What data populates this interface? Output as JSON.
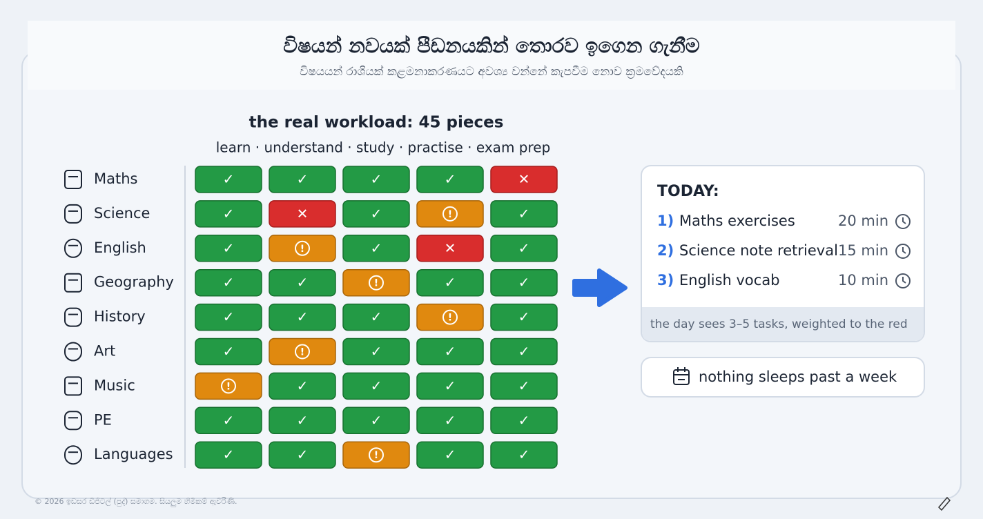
{
  "header": {
    "title": "විෂයන් නවයක් පීඩනයකින් තොරව ඉගෙන ගැනීම",
    "subtitle": "විෂයයන් රාශියක් කළමනාකරණයට අවශ්‍ය වන්නේ කැපවීම නොව ක්‍රමවේදයකි"
  },
  "workload": {
    "title": "the real workload: 45 pieces",
    "stages": "learn · understand · study · practise · exam prep",
    "rows": [
      {
        "subject": "Maths",
        "cells": [
          "✓",
          "✓",
          "✓",
          "✓",
          "✕"
        ]
      },
      {
        "subject": "Science",
        "cells": [
          "✓",
          "✕",
          "✓",
          "!",
          "✓"
        ]
      },
      {
        "subject": "English",
        "cells": [
          "✓",
          "!",
          "✓",
          "✕",
          "✓"
        ]
      },
      {
        "subject": "Geography",
        "cells": [
          "✓",
          "✓",
          "!",
          "✓",
          "✓"
        ]
      },
      {
        "subject": "History",
        "cells": [
          "✓",
          "✓",
          "✓",
          "!",
          "✓"
        ]
      },
      {
        "subject": "Art",
        "cells": [
          "✓",
          "!",
          "✓",
          "✓",
          "✓"
        ]
      },
      {
        "subject": "Music",
        "cells": [
          "!",
          "✓",
          "✓",
          "✓",
          "✓"
        ]
      },
      {
        "subject": "PE",
        "cells": [
          "✓",
          "✓",
          "✓",
          "✓",
          "✓"
        ]
      },
      {
        "subject": "Languages",
        "cells": [
          "✓",
          "✓",
          "!",
          "✓",
          "✓"
        ]
      }
    ]
  },
  "today": {
    "title": "TODAY:",
    "tasks": [
      {
        "number": "1)",
        "name": "Maths exercises",
        "time": "20 min"
      },
      {
        "number": "2)",
        "name": "Science note retrieval",
        "time": "15 min"
      },
      {
        "number": "3)",
        "name": "English vocab",
        "time": "10 min"
      }
    ],
    "footer": "the day sees 3–5 tasks, weighted to the red"
  },
  "note": "nothing sleeps past a week",
  "footer": "© 2026 ඉඩසර ඩිජිටල් (පුද්) සමාගම. සියලුම හිමිකම් ඇවිරිණි."
}
